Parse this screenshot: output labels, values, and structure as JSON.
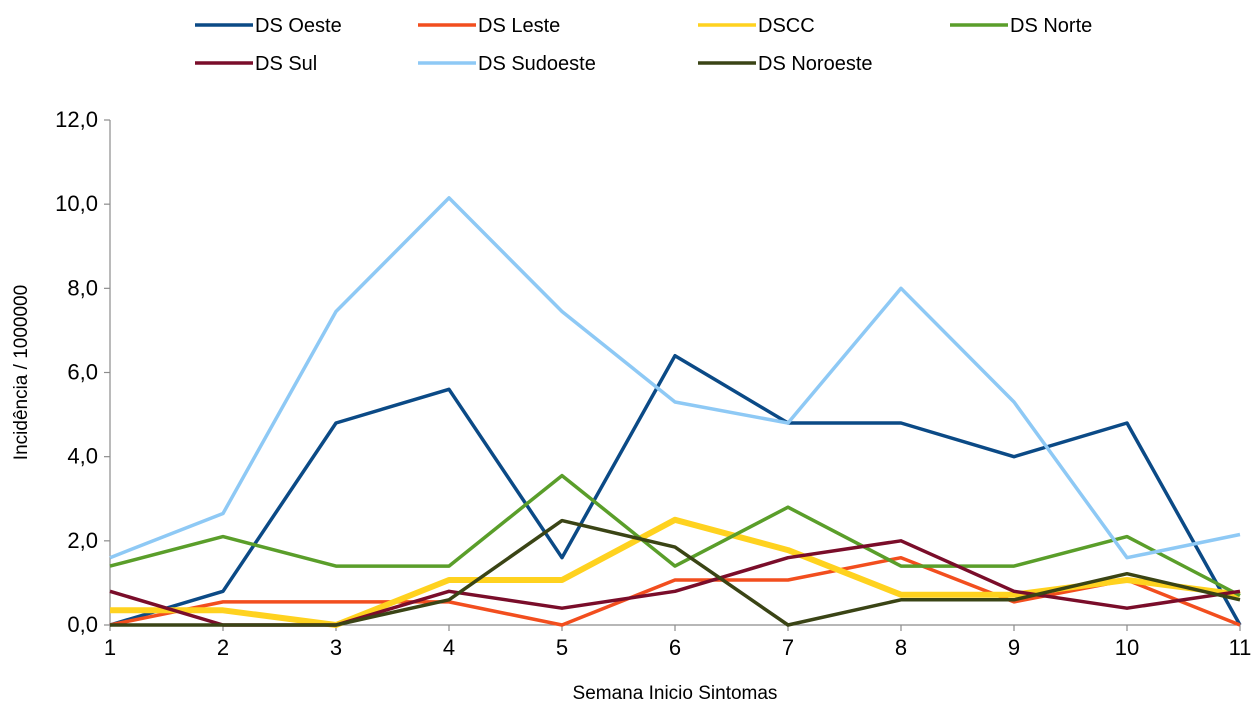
{
  "chart_data": {
    "type": "line",
    "title": "",
    "xlabel": "Semana Inicio Sintomas",
    "ylabel": "Incidência / 1000000",
    "x": [
      1,
      2,
      3,
      4,
      5,
      6,
      7,
      8,
      9,
      10,
      11
    ],
    "ylim": [
      0,
      12
    ],
    "yticks": [
      "0,0",
      "2,0",
      "4,0",
      "6,0",
      "8,0",
      "10,0",
      "12,0"
    ],
    "ytick_values": [
      0,
      2,
      4,
      6,
      8,
      10,
      12
    ],
    "xticks": [
      "1",
      "2",
      "3",
      "4",
      "5",
      "6",
      "7",
      "8",
      "9",
      "10",
      "11"
    ],
    "grid": false,
    "legend_position": "top",
    "series": [
      {
        "name": "DS Oeste",
        "color": "#0B4A86",
        "values": [
          0.0,
          0.8,
          4.8,
          5.6,
          1.6,
          6.4,
          4.8,
          4.8,
          4.0,
          4.8,
          0.0
        ]
      },
      {
        "name": "DS Leste",
        "color": "#F24E1E",
        "values": [
          0.0,
          0.55,
          0.55,
          0.55,
          0.0,
          1.07,
          1.07,
          1.6,
          0.55,
          1.07,
          0.0
        ]
      },
      {
        "name": "DSCC",
        "color": "#FFD21F",
        "values": [
          0.35,
          0.35,
          0.0,
          1.07,
          1.07,
          2.5,
          1.78,
          0.72,
          0.72,
          1.07,
          0.72
        ]
      },
      {
        "name": "DS Norte",
        "color": "#5A9E2A",
        "values": [
          1.4,
          2.1,
          1.4,
          1.4,
          3.55,
          1.4,
          2.8,
          1.4,
          1.4,
          2.1,
          0.7
        ]
      },
      {
        "name": "DS Sul",
        "color": "#7A0D2A",
        "values": [
          0.8,
          0.0,
          0.0,
          0.8,
          0.4,
          0.8,
          1.6,
          2.0,
          0.8,
          0.4,
          0.8
        ]
      },
      {
        "name": "DS Sudoeste",
        "color": "#8EC9F5",
        "values": [
          1.6,
          2.65,
          7.45,
          10.15,
          7.45,
          5.3,
          4.8,
          8.0,
          5.3,
          1.6,
          2.15
        ]
      },
      {
        "name": "DS Noroeste",
        "color": "#3A4415",
        "values": [
          0.0,
          0.0,
          0.0,
          0.6,
          2.48,
          1.85,
          0.0,
          0.6,
          0.6,
          1.22,
          0.6
        ]
      }
    ]
  }
}
